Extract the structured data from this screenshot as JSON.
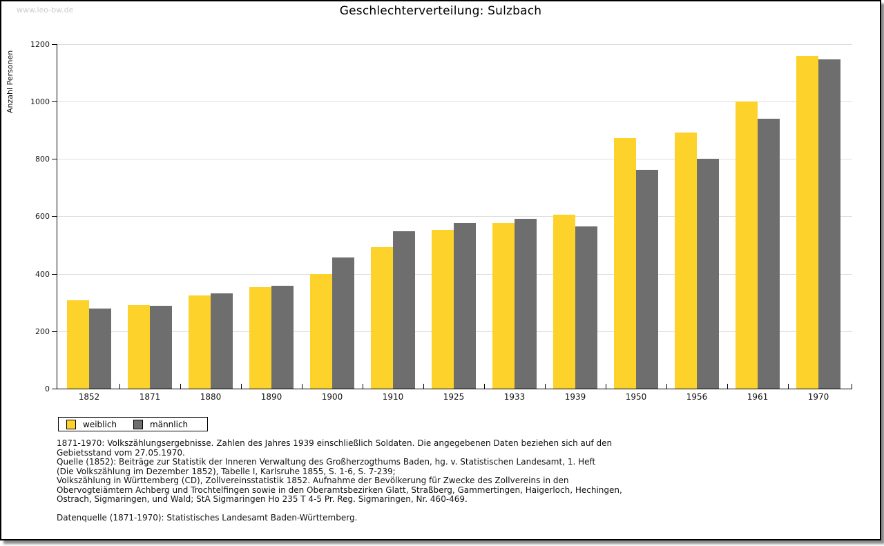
{
  "watermark": "www.leo-bw.de",
  "title": "Geschlechterverteilung: Sulzbach",
  "chart_data": {
    "type": "bar",
    "title": "Geschlechterverteilung: Sulzbach",
    "categories": [
      "1852",
      "1871",
      "1880",
      "1890",
      "1900",
      "1910",
      "1925",
      "1933",
      "1939",
      "1950",
      "1956",
      "1961",
      "1970"
    ],
    "series": [
      {
        "name": "weiblich",
        "color": "#fdd32b",
        "values": [
          308,
          292,
          325,
          353,
          400,
          492,
          553,
          576,
          605,
          873,
          893,
          1000,
          1159
        ]
      },
      {
        "name": "männlich",
        "color": "#6e6e6e",
        "values": [
          279,
          289,
          332,
          359,
          458,
          549,
          576,
          592,
          565,
          763,
          801,
          941,
          1147
        ]
      }
    ],
    "xlabel": "",
    "ylabel": "Anzahl Personen",
    "ylim": [
      0,
      1200
    ],
    "ytick_step": 200,
    "grid": true,
    "legend_position": "bottom-left"
  },
  "footnotes": [
    "1871-1970: Volkszählungsergebnisse. Zahlen des Jahres 1939 einschließlich Soldaten. Die angegebenen Daten beziehen sich auf den",
    "Gebietsstand vom 27.05.1970.",
    "Quelle (1852): Beiträge zur Statistik der Inneren Verwaltung des Großherzogthums Baden, hg. v. Statistischen Landesamt, 1. Heft",
    "(Die Volkszählung im Dezember 1852), Tabelle I, Karlsruhe 1855, S. 1-6, S. 7-239;",
    "Volkszählung in Württemberg (CD), Zollvereinsstatistik 1852. Aufnahme der Bevölkerung für Zwecke des Zollvereins in den",
    "Obervogteiämtern Achberg und Trochtelfingen sowie in den Oberamtsbezirken Glatt, Straßberg, Gammertingen, Haigerloch, Hechingen,",
    "Ostrach, Sigmaringen, und Wald; StA Sigmaringen Ho 235 T 4-5 Pr. Reg. Sigmaringen, Nr. 460-469."
  ],
  "datasource": "Datenquelle (1871-1970): Statistisches Landesamt Baden-Württemberg.",
  "colors": {
    "weiblich": "#fdd32b",
    "männlich": "#6e6e6e",
    "gridline": "#dcdcdc",
    "watermark": "#cccccc",
    "border": "#000000"
  }
}
